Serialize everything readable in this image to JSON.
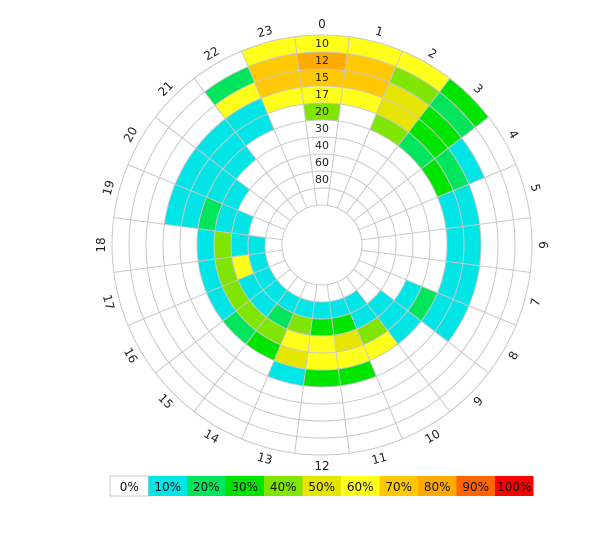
{
  "chart_data": {
    "type": "heatmap",
    "layout": "polar",
    "title": "",
    "angular_labels": [
      "0",
      "1",
      "2",
      "3",
      "4",
      "5",
      "6",
      "7",
      "8",
      "9",
      "10",
      "11",
      "12",
      "13",
      "14",
      "15",
      "16",
      "17",
      "18",
      "19",
      "20",
      "21",
      "22",
      "23"
    ],
    "radial_labels": [
      "10",
      "12",
      "15",
      "17",
      "20",
      "30",
      "40",
      "60",
      "80"
    ],
    "legend": {
      "labels": [
        "0%",
        "10%",
        "20%",
        "30%",
        "40%",
        "50%",
        "60%",
        "70%",
        "80%",
        "90%",
        "100%"
      ],
      "colors": [
        "#ffffff",
        "#00e5e5",
        "#00e55c",
        "#00e500",
        "#80e500",
        "#e5e500",
        "#ffff1a",
        "#ffc800",
        "#ffaa00",
        "#ff6400",
        "#ff0000"
      ]
    },
    "ring_values": [
      [
        6,
        6,
        6,
        3,
        0,
        0,
        0,
        0,
        0,
        0,
        0,
        0,
        0,
        0,
        0,
        0,
        0,
        0,
        0,
        0,
        0,
        0,
        0,
        6
      ],
      [
        8,
        7,
        4,
        2,
        0,
        0,
        0,
        0,
        0,
        0,
        0,
        0,
        0,
        0,
        0,
        0,
        0,
        0,
        0,
        0,
        0,
        0,
        2,
        7
      ],
      [
        7,
        7,
        5,
        3,
        1,
        0,
        0,
        0,
        0,
        0,
        0,
        0,
        0,
        0,
        0,
        0,
        0,
        0,
        0,
        0,
        0,
        0,
        6,
        7
      ],
      [
        6,
        6,
        5,
        3,
        2,
        1,
        1,
        1,
        1,
        0,
        0,
        0,
        0,
        0,
        0,
        0,
        0,
        0,
        0,
        1,
        1,
        1,
        1,
        6
      ],
      [
        4,
        0,
        4,
        2,
        3,
        1,
        1,
        1,
        1,
        0,
        0,
        3,
        3,
        1,
        0,
        0,
        0,
        0,
        0,
        1,
        1,
        1,
        1,
        0
      ],
      [
        0,
        0,
        0,
        0,
        0,
        0,
        0,
        0,
        2,
        1,
        6,
        6,
        6,
        5,
        3,
        2,
        1,
        1,
        1,
        2,
        1,
        1,
        0,
        0
      ],
      [
        0,
        0,
        0,
        0,
        0,
        0,
        0,
        0,
        1,
        1,
        4,
        5,
        6,
        6,
        4,
        4,
        4,
        4,
        4,
        1,
        1,
        0,
        0,
        0
      ],
      [
        0,
        0,
        0,
        0,
        0,
        0,
        0,
        0,
        0,
        1,
        1,
        3,
        3,
        4,
        2,
        1,
        1,
        6,
        1,
        1,
        0,
        0,
        0,
        0
      ],
      [
        0,
        0,
        0,
        0,
        0,
        0,
        0,
        0,
        0,
        0,
        1,
        1,
        1,
        1,
        1,
        1,
        1,
        1,
        1,
        0,
        0,
        0,
        0,
        0
      ]
    ]
  }
}
